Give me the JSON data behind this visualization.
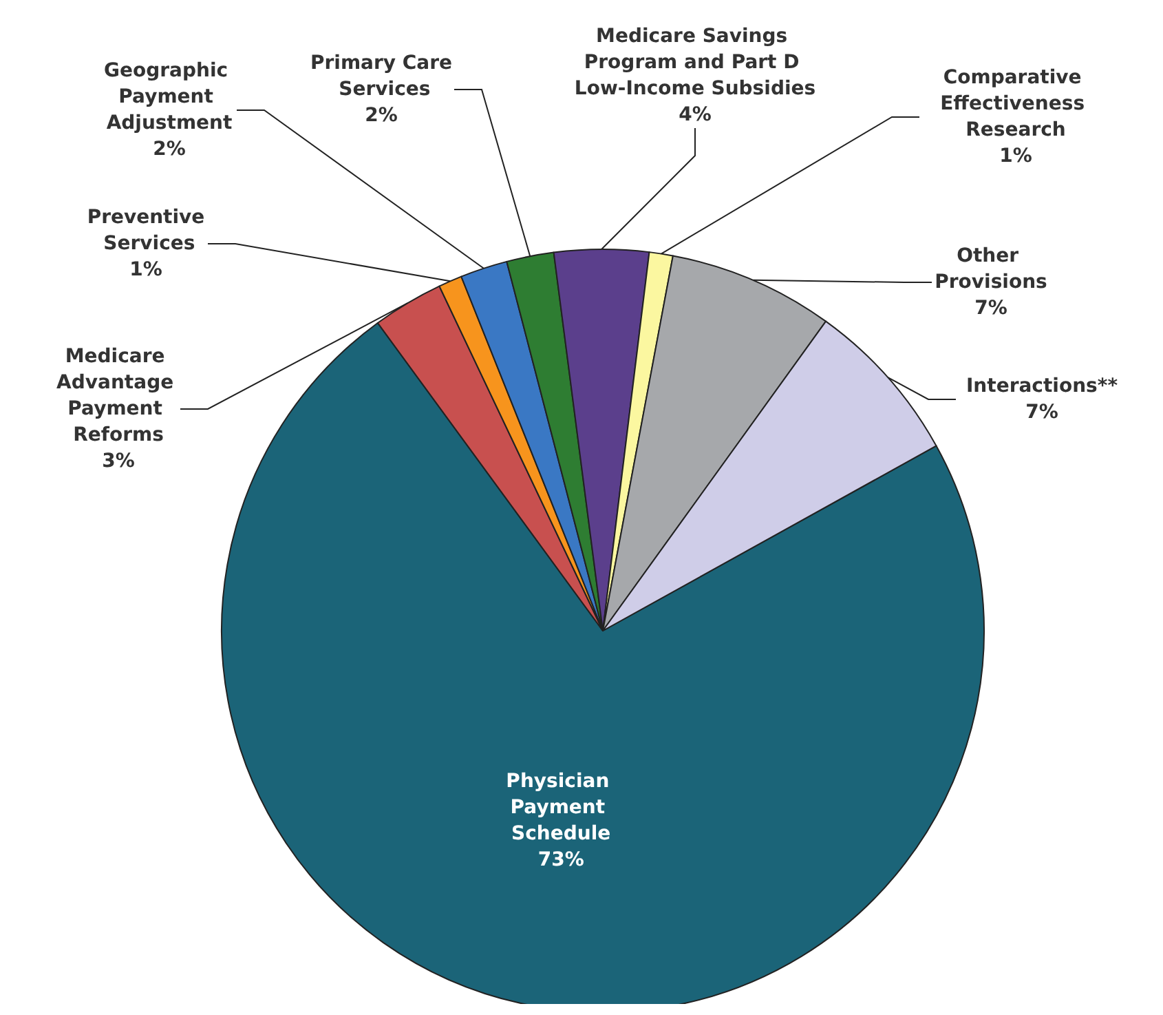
{
  "chart_data": {
    "type": "pie",
    "categories": [
      "Physician Payment Schedule",
      "Medicare Advantage Payment Reforms",
      "Preventive Services",
      "Geographic Payment Adjustment",
      "Primary Care Services",
      "Medicare Savings Program and Part D Low-Income Subsidies",
      "Comparative Effectiveness Research",
      "Other Provisions",
      "Interactions**"
    ],
    "values": [
      73,
      3,
      1,
      2,
      2,
      4,
      1,
      7,
      7
    ],
    "colors": [
      "#1b6478",
      "#c8504f",
      "#f7941d",
      "#3a78c4",
      "#2e7d32",
      "#5b3f8c",
      "#fbf7a0",
      "#a6a8ab",
      "#cfcde8"
    ],
    "value_labels": [
      "73%",
      "3%",
      "1%",
      "2%",
      "2%",
      "4%",
      "1%",
      "7%",
      "7%"
    ],
    "legend": false
  }
}
